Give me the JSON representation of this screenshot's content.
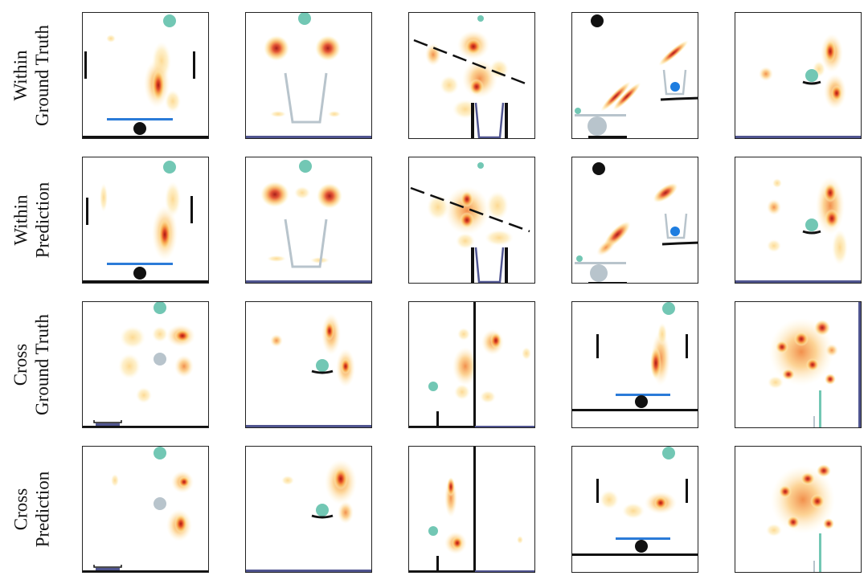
{
  "rows": [
    {
      "label": [
        "Within",
        "Ground Truth"
      ]
    },
    {
      "label": [
        "Within",
        "Prediction"
      ]
    },
    {
      "label": [
        "Cross",
        "Ground Truth"
      ]
    },
    {
      "label": [
        "Cross",
        "Prediction"
      ]
    }
  ],
  "colors": {
    "goal_ball": "#72c7b4",
    "gray_ball": "#b8c4cc",
    "blue_ball": "#1e7de0",
    "blue_bar": "#2b7bd8",
    "black": "#111111",
    "floor": "#505590",
    "heat_low": "#fde9a8",
    "heat_mid": "#f39a3a",
    "heat_high": "#b81a1a"
  }
}
